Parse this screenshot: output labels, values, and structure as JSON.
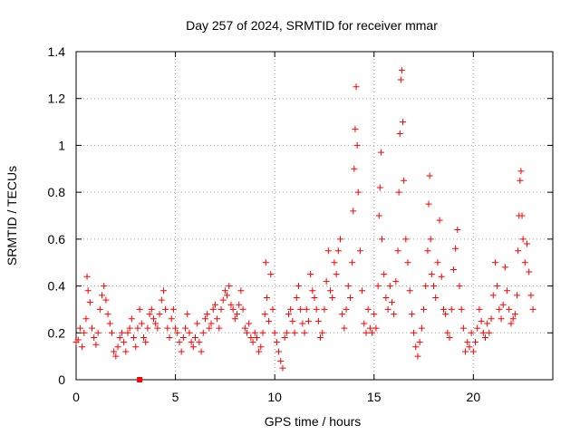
{
  "chart_data": {
    "type": "scatter",
    "title": "Day 257 of 2024, SRMTID for receiver mmar",
    "xlabel": "GPS time / hours",
    "ylabel": "SRMTID / TECUs",
    "xlim": [
      0,
      24
    ],
    "ylim": [
      0,
      1.4
    ],
    "xticks": [
      0,
      5,
      10,
      15,
      20
    ],
    "xtick_labels": [
      "0",
      "5",
      "10",
      "15",
      "20"
    ],
    "yticks": [
      0,
      0.2,
      0.4,
      0.6,
      0.8,
      1.0,
      1.2,
      1.4
    ],
    "ytick_labels": [
      "0",
      "0.2",
      "0.4",
      "0.6",
      "0.8",
      "1",
      "1.2",
      "1.4"
    ],
    "grid": true,
    "marker": "+",
    "color": "#ff0000",
    "series": [
      {
        "name": "SRMTID",
        "points": [
          [
            0.0,
            0.16
          ],
          [
            0.1,
            0.17
          ],
          [
            0.2,
            0.22
          ],
          [
            0.3,
            0.14
          ],
          [
            0.4,
            0.2
          ],
          [
            0.5,
            0.26
          ],
          [
            0.55,
            0.44
          ],
          [
            0.6,
            0.38
          ],
          [
            0.7,
            0.33
          ],
          [
            0.8,
            0.22
          ],
          [
            0.9,
            0.18
          ],
          [
            1.0,
            0.15
          ],
          [
            1.1,
            0.2
          ],
          [
            1.2,
            0.3
          ],
          [
            1.3,
            0.36
          ],
          [
            1.4,
            0.4
          ],
          [
            1.5,
            0.34
          ],
          [
            1.6,
            0.28
          ],
          [
            1.7,
            0.24
          ],
          [
            1.8,
            0.2
          ],
          [
            1.9,
            0.12
          ],
          [
            2.0,
            0.1
          ],
          [
            2.1,
            0.14
          ],
          [
            2.2,
            0.18
          ],
          [
            2.3,
            0.2
          ],
          [
            2.4,
            0.16
          ],
          [
            2.5,
            0.12
          ],
          [
            2.6,
            0.2
          ],
          [
            2.7,
            0.22
          ],
          [
            2.8,
            0.26
          ],
          [
            2.9,
            0.18
          ],
          [
            3.0,
            0.14
          ],
          [
            3.1,
            0.22
          ],
          [
            3.2,
            0.3
          ],
          [
            3.3,
            0.24
          ],
          [
            3.4,
            0.18
          ],
          [
            3.5,
            0.16
          ],
          [
            3.6,
            0.22
          ],
          [
            3.7,
            0.28
          ],
          [
            3.8,
            0.3
          ],
          [
            3.9,
            0.26
          ],
          [
            4.0,
            0.24
          ],
          [
            4.1,
            0.22
          ],
          [
            4.2,
            0.28
          ],
          [
            4.3,
            0.34
          ],
          [
            4.4,
            0.38
          ],
          [
            4.5,
            0.3
          ],
          [
            4.6,
            0.22
          ],
          [
            4.7,
            0.18
          ],
          [
            4.8,
            0.26
          ],
          [
            4.9,
            0.3
          ],
          [
            5.0,
            0.22
          ],
          [
            5.1,
            0.2
          ],
          [
            5.2,
            0.16
          ],
          [
            5.3,
            0.12
          ],
          [
            5.4,
            0.18
          ],
          [
            5.5,
            0.22
          ],
          [
            5.6,
            0.28
          ],
          [
            5.7,
            0.2
          ],
          [
            5.8,
            0.16
          ],
          [
            5.9,
            0.14
          ],
          [
            6.0,
            0.18
          ],
          [
            6.1,
            0.24
          ],
          [
            6.2,
            0.16
          ],
          [
            6.3,
            0.12
          ],
          [
            6.4,
            0.2
          ],
          [
            6.5,
            0.26
          ],
          [
            6.6,
            0.28
          ],
          [
            6.7,
            0.22
          ],
          [
            6.8,
            0.24
          ],
          [
            6.9,
            0.3
          ],
          [
            7.0,
            0.32
          ],
          [
            7.1,
            0.26
          ],
          [
            7.2,
            0.22
          ],
          [
            7.3,
            0.3
          ],
          [
            7.4,
            0.34
          ],
          [
            7.5,
            0.38
          ],
          [
            7.6,
            0.36
          ],
          [
            7.7,
            0.4
          ],
          [
            7.8,
            0.32
          ],
          [
            7.9,
            0.3
          ],
          [
            8.0,
            0.26
          ],
          [
            8.1,
            0.28
          ],
          [
            8.2,
            0.32
          ],
          [
            8.3,
            0.38
          ],
          [
            8.4,
            0.3
          ],
          [
            8.5,
            0.22
          ],
          [
            8.6,
            0.2
          ],
          [
            8.7,
            0.24
          ],
          [
            8.8,
            0.18
          ],
          [
            8.9,
            0.16
          ],
          [
            9.0,
            0.2
          ],
          [
            9.1,
            0.18
          ],
          [
            9.2,
            0.12
          ],
          [
            9.3,
            0.14
          ],
          [
            9.4,
            0.2
          ],
          [
            9.5,
            0.28
          ],
          [
            9.55,
            0.5
          ],
          [
            9.6,
            0.35
          ],
          [
            9.7,
            0.25
          ],
          [
            9.8,
            0.45
          ],
          [
            9.9,
            0.3
          ],
          [
            10.0,
            0.2
          ],
          [
            10.1,
            0.16
          ],
          [
            10.2,
            0.12
          ],
          [
            10.3,
            0.08
          ],
          [
            10.4,
            0.05
          ],
          [
            10.5,
            0.18
          ],
          [
            10.6,
            0.2
          ],
          [
            10.7,
            0.28
          ],
          [
            10.8,
            0.3
          ],
          [
            10.9,
            0.25
          ],
          [
            11.0,
            0.2
          ],
          [
            11.1,
            0.35
          ],
          [
            11.2,
            0.4
          ],
          [
            11.3,
            0.3
          ],
          [
            11.4,
            0.24
          ],
          [
            11.5,
            0.2
          ],
          [
            11.6,
            0.3
          ],
          [
            11.7,
            0.25
          ],
          [
            11.8,
            0.45
          ],
          [
            11.9,
            0.38
          ],
          [
            12.0,
            0.35
          ],
          [
            12.1,
            0.3
          ],
          [
            12.2,
            0.25
          ],
          [
            12.3,
            0.18
          ],
          [
            12.4,
            0.2
          ],
          [
            12.5,
            0.3
          ],
          [
            12.6,
            0.42
          ],
          [
            12.7,
            0.55
          ],
          [
            12.8,
            0.38
          ],
          [
            12.9,
            0.35
          ],
          [
            13.0,
            0.5
          ],
          [
            13.1,
            0.45
          ],
          [
            13.2,
            0.55
          ],
          [
            13.3,
            0.6
          ],
          [
            13.4,
            0.28
          ],
          [
            13.5,
            0.22
          ],
          [
            13.6,
            0.3
          ],
          [
            13.7,
            0.4
          ],
          [
            13.8,
            0.35
          ],
          [
            13.9,
            0.5
          ],
          [
            13.95,
            0.72
          ],
          [
            14.0,
            0.9
          ],
          [
            14.05,
            1.07
          ],
          [
            14.1,
            1.25
          ],
          [
            14.15,
            1.0
          ],
          [
            14.2,
            0.8
          ],
          [
            14.3,
            0.55
          ],
          [
            14.4,
            0.38
          ],
          [
            14.5,
            0.24
          ],
          [
            14.6,
            0.2
          ],
          [
            14.7,
            0.3
          ],
          [
            14.8,
            0.22
          ],
          [
            14.9,
            0.2
          ],
          [
            15.0,
            0.28
          ],
          [
            15.1,
            0.22
          ],
          [
            15.2,
            0.4
          ],
          [
            15.25,
            0.7
          ],
          [
            15.3,
            0.82
          ],
          [
            15.35,
            0.97
          ],
          [
            15.4,
            0.6
          ],
          [
            15.5,
            0.45
          ],
          [
            15.6,
            0.35
          ],
          [
            15.7,
            0.3
          ],
          [
            15.8,
            0.4
          ],
          [
            15.9,
            0.33
          ],
          [
            16.0,
            0.28
          ],
          [
            16.1,
            0.42
          ],
          [
            16.2,
            0.55
          ],
          [
            16.25,
            0.8
          ],
          [
            16.3,
            1.05
          ],
          [
            16.35,
            1.28
          ],
          [
            16.4,
            1.32
          ],
          [
            16.45,
            1.1
          ],
          [
            16.5,
            0.85
          ],
          [
            16.6,
            0.6
          ],
          [
            16.7,
            0.5
          ],
          [
            16.8,
            0.38
          ],
          [
            16.9,
            0.28
          ],
          [
            17.0,
            0.2
          ],
          [
            17.1,
            0.14
          ],
          [
            17.2,
            0.1
          ],
          [
            17.3,
            0.16
          ],
          [
            17.4,
            0.22
          ],
          [
            17.5,
            0.3
          ],
          [
            17.6,
            0.4
          ],
          [
            17.7,
            0.55
          ],
          [
            17.75,
            0.75
          ],
          [
            17.8,
            0.87
          ],
          [
            17.85,
            0.6
          ],
          [
            17.9,
            0.45
          ],
          [
            18.0,
            0.4
          ],
          [
            18.1,
            0.35
          ],
          [
            18.2,
            0.5
          ],
          [
            18.3,
            0.68
          ],
          [
            18.4,
            0.44
          ],
          [
            18.5,
            0.3
          ],
          [
            18.6,
            0.28
          ],
          [
            18.7,
            0.2
          ],
          [
            18.8,
            0.18
          ],
          [
            18.9,
            0.3
          ],
          [
            19.0,
            0.47
          ],
          [
            19.1,
            0.56
          ],
          [
            19.2,
            0.64
          ],
          [
            19.3,
            0.4
          ],
          [
            19.4,
            0.3
          ],
          [
            19.5,
            0.22
          ],
          [
            19.6,
            0.12
          ],
          [
            19.7,
            0.16
          ],
          [
            19.8,
            0.14
          ],
          [
            19.9,
            0.2
          ],
          [
            20.0,
            0.12
          ],
          [
            20.1,
            0.16
          ],
          [
            20.2,
            0.22
          ],
          [
            20.3,
            0.3
          ],
          [
            20.4,
            0.25
          ],
          [
            20.5,
            0.2
          ],
          [
            20.6,
            0.18
          ],
          [
            20.7,
            0.24
          ],
          [
            20.8,
            0.2
          ],
          [
            20.9,
            0.26
          ],
          [
            21.0,
            0.36
          ],
          [
            21.1,
            0.5
          ],
          [
            21.2,
            0.4
          ],
          [
            21.3,
            0.3
          ],
          [
            21.4,
            0.26
          ],
          [
            21.5,
            0.32
          ],
          [
            21.6,
            0.48
          ],
          [
            21.7,
            0.38
          ],
          [
            21.8,
            0.3
          ],
          [
            21.9,
            0.24
          ],
          [
            22.0,
            0.26
          ],
          [
            22.1,
            0.28
          ],
          [
            22.2,
            0.36
          ],
          [
            22.25,
            0.55
          ],
          [
            22.3,
            0.7
          ],
          [
            22.35,
            0.85
          ],
          [
            22.4,
            0.89
          ],
          [
            22.45,
            0.7
          ],
          [
            22.5,
            0.6
          ],
          [
            22.6,
            0.5
          ],
          [
            22.7,
            0.58
          ],
          [
            22.8,
            0.46
          ],
          [
            22.9,
            0.36
          ],
          [
            23.0,
            0.3
          ]
        ]
      }
    ],
    "annotations": [
      {
        "type": "square-marker",
        "x": 3.2,
        "y": 0.0,
        "color": "#ff0000"
      }
    ]
  }
}
